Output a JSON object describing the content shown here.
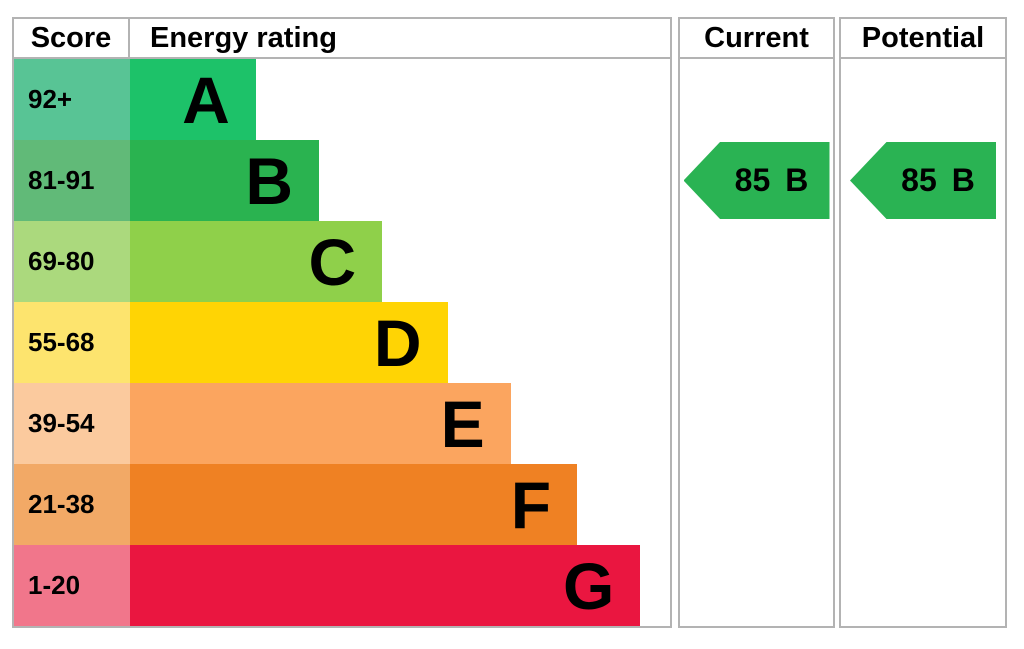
{
  "header": {
    "score": "Score",
    "energy_rating": "Energy rating",
    "current": "Current",
    "potential": "Potential"
  },
  "bands": [
    {
      "letter": "A",
      "score": "92+",
      "width_pct": 23.3,
      "bar_color": "#1dc269",
      "score_color": "#58c495"
    },
    {
      "letter": "B",
      "score": "81-91",
      "width_pct": 35.0,
      "bar_color": "#2ab350",
      "score_color": "#61ba78"
    },
    {
      "letter": "C",
      "score": "69-80",
      "width_pct": 46.7,
      "bar_color": "#8fd04a",
      "score_color": "#abd97d"
    },
    {
      "letter": "D",
      "score": "55-68",
      "width_pct": 58.8,
      "bar_color": "#ffd404",
      "score_color": "#fde46e"
    },
    {
      "letter": "E",
      "score": "39-54",
      "width_pct": 70.5,
      "bar_color": "#fba55f",
      "score_color": "#fbca9e"
    },
    {
      "letter": "F",
      "score": "21-38",
      "width_pct": 82.8,
      "bar_color": "#ef8123",
      "score_color": "#f2a966"
    },
    {
      "letter": "G",
      "score": "1-20",
      "width_pct": 94.5,
      "bar_color": "#ea1640",
      "score_color": "#f1768b"
    }
  ],
  "current": {
    "value": "85",
    "band": "B",
    "arrow_color": "#2ab353",
    "row_index": 1
  },
  "potential": {
    "value": "85",
    "band": "B",
    "arrow_color": "#2ab353",
    "row_index": 1
  },
  "colors": {
    "border": "#b3b3b3",
    "text": "#000000",
    "background": "#ffffff"
  },
  "chart_data": {
    "type": "bar",
    "subtype": "epc-energy-rating",
    "title": "",
    "columns": [
      "Score",
      "Energy rating",
      "Current",
      "Potential"
    ],
    "categories": [
      "A",
      "B",
      "C",
      "D",
      "E",
      "F",
      "G"
    ],
    "score_ranges": [
      "92+",
      "81-91",
      "69-80",
      "55-68",
      "39-54",
      "21-38",
      "1-20"
    ],
    "bar_lengths_pct": [
      23.3,
      35.0,
      46.7,
      58.8,
      70.5,
      82.8,
      94.5
    ],
    "band_colors": [
      "#1dc269",
      "#2ab350",
      "#8fd04a",
      "#ffd404",
      "#fba55f",
      "#ef8123",
      "#ea1640"
    ],
    "score_cell_colors": [
      "#58c495",
      "#61ba78",
      "#abd97d",
      "#fde46e",
      "#fbca9e",
      "#f2a966",
      "#f1768b"
    ],
    "current": {
      "score": 85,
      "band": "B"
    },
    "potential": {
      "score": 85,
      "band": "B"
    },
    "legend_position": "none",
    "grid": false
  }
}
